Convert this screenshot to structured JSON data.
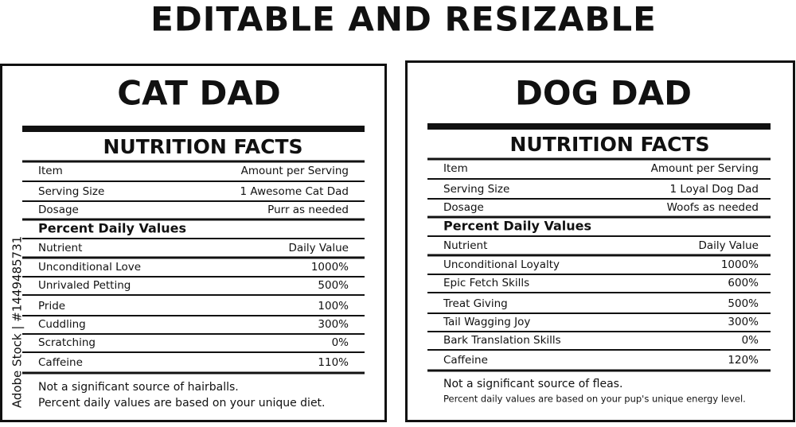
{
  "header": {
    "title": "EDITABLE AND RESIZABLE"
  },
  "watermark": "Adobe Stock | #1449485731",
  "labels": [
    {
      "title": "CAT DAD",
      "heading": "NUTRITION FACTS",
      "columns": [
        "Item",
        "Amount per Serving"
      ],
      "rows": [
        [
          "Serving Size",
          "1 Awesome Cat Dad"
        ],
        [
          "Dosage",
          "Purr as needed"
        ]
      ],
      "section": "Percent Daily Values",
      "nutrient_columns": [
        "Nutrient",
        "Daily Value"
      ],
      "nutrients": [
        [
          "Unconditional Love",
          "1000%"
        ],
        [
          "Unrivaled Petting",
          "500%"
        ],
        [
          "Pride",
          "100%"
        ],
        [
          "Cuddling",
          "300%"
        ],
        [
          "Scratching",
          "0%"
        ],
        [
          "Caffeine",
          "110%"
        ]
      ],
      "notes": [
        "Not a significant source of hairballs.",
        "Percent daily values are based on your unique diet."
      ]
    },
    {
      "title": "DOG DAD",
      "heading": "NUTRITION FACTS",
      "columns": [
        "Item",
        "Amount per Serving"
      ],
      "rows": [
        [
          "Serving Size",
          "1 Loyal Dog Dad"
        ],
        [
          "Dosage",
          "Woofs as needed"
        ]
      ],
      "section": "Percent Daily Values",
      "nutrient_columns": [
        "Nutrient",
        "Daily Value"
      ],
      "nutrients": [
        [
          "Unconditional Loyalty",
          "1000%"
        ],
        [
          "Epic Fetch Skills",
          "600%"
        ],
        [
          "Treat Giving",
          "500%"
        ],
        [
          "Tail Wagging Joy",
          "300%"
        ],
        [
          "Bark Translation Skills",
          "0%"
        ],
        [
          "Caffeine",
          "120%"
        ]
      ],
      "notes": [
        "Not a significant source of fleas.",
        "Percent daily values are based on your pup's unique energy level."
      ]
    }
  ]
}
